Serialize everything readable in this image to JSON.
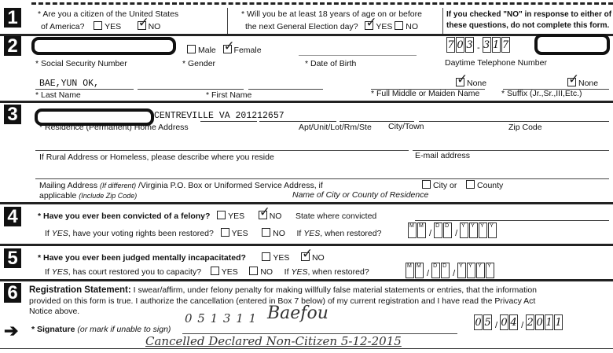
{
  "s1": {
    "num": "1",
    "q1a": "* Are you a citizen of the  United States",
    "q1b": "of America?",
    "yes": "YES",
    "no": "NO",
    "q1_yes": false,
    "q1_no": true,
    "q2a": "* Will you be at least 18 years of age on or before",
    "q2b": "the next General Election day?",
    "q2_yes": true,
    "q2_no": false,
    "note1": "If you checked \"NO\" in response to either of",
    "note2": "these questions, do not complete this form."
  },
  "s2": {
    "num": "2",
    "male": "Male",
    "female": "Female",
    "male_checked": false,
    "female_checked": true,
    "ssn": "* Social Security Number",
    "gender": "* Gender",
    "dob": "* Date of Birth",
    "phone_label": "Daytime Telephone Number",
    "phone": [
      "7",
      "0",
      "3",
      "3",
      "1",
      "7"
    ],
    "none": "None",
    "middle_none": true,
    "suffix_none": true,
    "last_name_value": "BAE,YUN OK,",
    "last": "* Last Name",
    "first": "* First Name",
    "middle": "* Full Middle or Maiden Name",
    "suffix": "* Suffix (Jr.,Sr.,III,Etc.)"
  },
  "s3": {
    "num": "3",
    "address_value": "CENTREVILLE VA 201212657",
    "residence": "* Residence (Permanent) Home Address",
    "apt": "Apt/Unit/Lot/Rm/Ste",
    "city": "City/Town",
    "zip": "Zip Code",
    "rural": "If Rural Address or Homeless, please describe where you reside",
    "email": "E-mail address",
    "mail1": "Mailing Address ",
    "mail1i": "(If different)",
    "mail1b": " /Virginia P.O. Box or Uniformed Service Address, if",
    "mail2": "applicable ",
    "mail2i": "(Include Zip Code)",
    "cityor": "City or",
    "county": "County",
    "nameof": "Name of City or County of Residence"
  },
  "s4": {
    "num": "4",
    "q": "* Have you ever been convicted of a felony?",
    "yes": "YES",
    "no": "NO",
    "q_no": true,
    "state": "State where convicted",
    "q2a": "If ",
    "q2i": "YES",
    "q2b": ", have your voting rights been restored?",
    "when_a": "If ",
    "when_i": "YES",
    "when_b": ", when restored?"
  },
  "s5": {
    "num": "5",
    "q": "* Have you ever been judged mentally incapacitated?",
    "q_no": true,
    "q2a": "If ",
    "q2i": "YES",
    "q2b": ", has court restored you to capacity?"
  },
  "s6": {
    "num": "6",
    "stmt_b": "Registration Statement:",
    "stmt1": " I swear/affirm, under felony penalty for making willfully false material statements or entries, that the information",
    "stmt2": "provided on this form is true.  I authorize the cancellation (entered in Box 7 below) of my current registration and I have read the Privacy Act",
    "stmt3": "Notice above.",
    "sig_b": "* Signature",
    "sig_i": " (or mark if unable to sign)",
    "handnum": "0 5 1 3 1 1",
    "signature": "Baefou",
    "date": [
      "0",
      "5",
      "0",
      "4",
      "2",
      "0",
      "1",
      "1"
    ],
    "note": "Cancelled Declared Non-Citizen  5-12-2015"
  },
  "date_letters": [
    "M",
    "M",
    "D",
    "D",
    "Y",
    "Y",
    "Y",
    "Y"
  ]
}
